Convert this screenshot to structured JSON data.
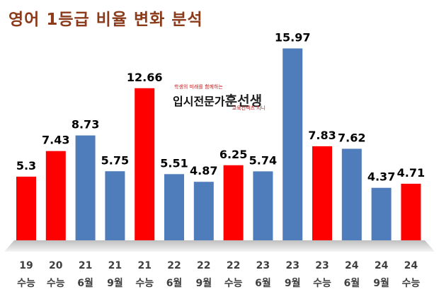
{
  "title": "영어 1등급 비율 변화 분석",
  "logo": {
    "tagline": "학생의 미래를 함께하는",
    "main_text": "입시전문가",
    "brand": "훈선생",
    "sub_text": "교육컨텍츠 지니"
  },
  "colors": {
    "highlight": "#ff0000",
    "default": "#4f7cba",
    "title": "#8b3a1a"
  },
  "chart_data": {
    "type": "bar",
    "title": "영어 1등급 비율 변화 분석",
    "xlabel": "",
    "ylabel": "",
    "ylim": [
      0,
      18
    ],
    "grid": false,
    "legend": "none",
    "categories": [
      [
        "19",
        "수능"
      ],
      [
        "20",
        "수능"
      ],
      [
        "21",
        "6월"
      ],
      [
        "21",
        "9월"
      ],
      [
        "21",
        "수능"
      ],
      [
        "22",
        "6월"
      ],
      [
        "22",
        "9월"
      ],
      [
        "22",
        "수능"
      ],
      [
        "23",
        "6월"
      ],
      [
        "23",
        "9월"
      ],
      [
        "23",
        "수능"
      ],
      [
        "24",
        "6월"
      ],
      [
        "24",
        "9월"
      ],
      [
        "24",
        "수능"
      ]
    ],
    "values": [
      5.3,
      7.43,
      8.73,
      5.75,
      12.66,
      5.51,
      4.87,
      6.25,
      5.74,
      15.97,
      7.83,
      7.62,
      4.37,
      4.71
    ],
    "labels": [
      "5.3",
      "7.43",
      "8.73",
      "5.75",
      "12.66",
      "5.51",
      "4.87",
      "6.25",
      "5.74",
      "15.97",
      "7.83",
      "7.62",
      "4.37",
      "4.71"
    ],
    "bar_colors": [
      "red",
      "red",
      "blue",
      "blue",
      "red",
      "blue",
      "blue",
      "red",
      "blue",
      "blue",
      "red",
      "blue",
      "blue",
      "red"
    ]
  }
}
